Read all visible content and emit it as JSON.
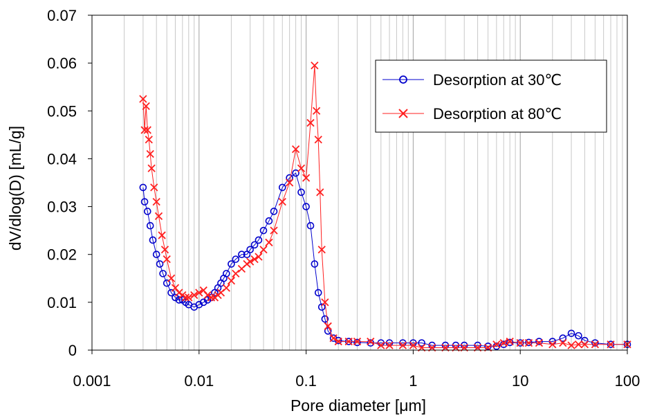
{
  "chart_data": {
    "type": "scatter",
    "title": "",
    "xlabel": "Pore diameter [μm]",
    "ylabel": "dV/dlog(D) [mL/g]",
    "x_scale": "log",
    "xlim": [
      0.001,
      100
    ],
    "ylim": [
      0,
      0.07
    ],
    "x_ticks": [
      0.001,
      0.01,
      0.1,
      1,
      10,
      100
    ],
    "x_tick_labels": [
      "0.001",
      "0.01",
      "0.1",
      "1",
      "10",
      "100"
    ],
    "y_ticks": [
      0,
      0.01,
      0.02,
      0.03,
      0.04,
      0.05,
      0.06,
      0.07
    ],
    "y_tick_labels": [
      "0",
      "0.01",
      "0.02",
      "0.03",
      "0.04",
      "0.05",
      "0.06",
      "0.07"
    ],
    "grid": "vertical log gridlines",
    "legend_position": "top-right",
    "series": [
      {
        "name": "Desorption at 30℃",
        "color": "#0000cc",
        "marker": "circle",
        "x": [
          0.003,
          0.0031,
          0.0033,
          0.0035,
          0.0037,
          0.004,
          0.0043,
          0.0046,
          0.005,
          0.0055,
          0.006,
          0.0065,
          0.007,
          0.0075,
          0.008,
          0.009,
          0.01,
          0.011,
          0.012,
          0.013,
          0.014,
          0.015,
          0.016,
          0.017,
          0.018,
          0.02,
          0.022,
          0.025,
          0.028,
          0.03,
          0.033,
          0.036,
          0.04,
          0.045,
          0.05,
          0.06,
          0.07,
          0.08,
          0.09,
          0.1,
          0.11,
          0.12,
          0.13,
          0.14,
          0.15,
          0.16,
          0.18,
          0.2,
          0.25,
          0.3,
          0.4,
          0.5,
          0.6,
          0.8,
          1.0,
          1.2,
          1.5,
          2.0,
          2.5,
          3.0,
          4.0,
          5.0,
          6.0,
          7.0,
          8.0,
          10,
          12,
          15,
          20,
          25,
          30,
          35,
          40,
          50,
          70,
          100
        ],
        "y": [
          0.034,
          0.031,
          0.029,
          0.026,
          0.023,
          0.02,
          0.018,
          0.016,
          0.014,
          0.012,
          0.011,
          0.0105,
          0.0105,
          0.01,
          0.0095,
          0.009,
          0.0095,
          0.01,
          0.0105,
          0.011,
          0.012,
          0.013,
          0.014,
          0.015,
          0.016,
          0.018,
          0.019,
          0.02,
          0.02,
          0.021,
          0.022,
          0.023,
          0.025,
          0.027,
          0.029,
          0.034,
          0.036,
          0.037,
          0.033,
          0.03,
          0.026,
          0.018,
          0.012,
          0.009,
          0.0065,
          0.004,
          0.0025,
          0.002,
          0.0018,
          0.0016,
          0.0015,
          0.0015,
          0.0015,
          0.0015,
          0.0015,
          0.0015,
          0.001,
          0.001,
          0.001,
          0.001,
          0.001,
          0.0008,
          0.0008,
          0.0012,
          0.0016,
          0.0015,
          0.0016,
          0.0018,
          0.0018,
          0.0025,
          0.0035,
          0.003,
          0.002,
          0.0015,
          0.0012,
          0.0012
        ]
      },
      {
        "name": "Desorption at 80℃",
        "color": "#ff2020",
        "marker": "x",
        "x": [
          0.003,
          0.0031,
          0.0032,
          0.0033,
          0.0034,
          0.0035,
          0.0036,
          0.0038,
          0.004,
          0.0042,
          0.0045,
          0.0048,
          0.005,
          0.0055,
          0.006,
          0.0065,
          0.007,
          0.0075,
          0.008,
          0.009,
          0.01,
          0.011,
          0.012,
          0.013,
          0.014,
          0.015,
          0.016,
          0.018,
          0.02,
          0.022,
          0.025,
          0.028,
          0.03,
          0.033,
          0.036,
          0.04,
          0.045,
          0.05,
          0.06,
          0.07,
          0.08,
          0.09,
          0.1,
          0.11,
          0.12,
          0.125,
          0.13,
          0.135,
          0.14,
          0.15,
          0.16,
          0.18,
          0.2,
          0.25,
          0.3,
          0.4,
          0.5,
          0.6,
          0.8,
          1.0,
          1.2,
          1.5,
          2.0,
          2.5,
          3.0,
          4.0,
          5.0,
          6.0,
          7.0,
          8.0,
          10,
          12,
          15,
          20,
          25,
          30,
          35,
          40,
          50,
          70,
          100
        ],
        "y": [
          0.0525,
          0.046,
          0.051,
          0.046,
          0.044,
          0.041,
          0.038,
          0.034,
          0.031,
          0.028,
          0.024,
          0.021,
          0.019,
          0.015,
          0.013,
          0.012,
          0.0115,
          0.011,
          0.011,
          0.0115,
          0.012,
          0.0125,
          0.0115,
          0.011,
          0.011,
          0.0115,
          0.012,
          0.013,
          0.0145,
          0.016,
          0.017,
          0.018,
          0.0185,
          0.019,
          0.0195,
          0.021,
          0.0225,
          0.025,
          0.031,
          0.035,
          0.042,
          0.038,
          0.036,
          0.0475,
          0.0595,
          0.05,
          0.044,
          0.033,
          0.021,
          0.01,
          0.005,
          0.0025,
          0.0018,
          0.0018,
          0.0018,
          0.0018,
          0.001,
          0.001,
          0.001,
          0.001,
          0.0005,
          0.0005,
          0.0005,
          0.0005,
          0.0005,
          0.0005,
          0.0005,
          0.0012,
          0.0015,
          0.0018,
          0.0015,
          0.0015,
          0.0015,
          0.0012,
          0.0015,
          0.001,
          0.0012,
          0.0012,
          0.0012,
          0.0012,
          0.0012
        ]
      }
    ]
  }
}
